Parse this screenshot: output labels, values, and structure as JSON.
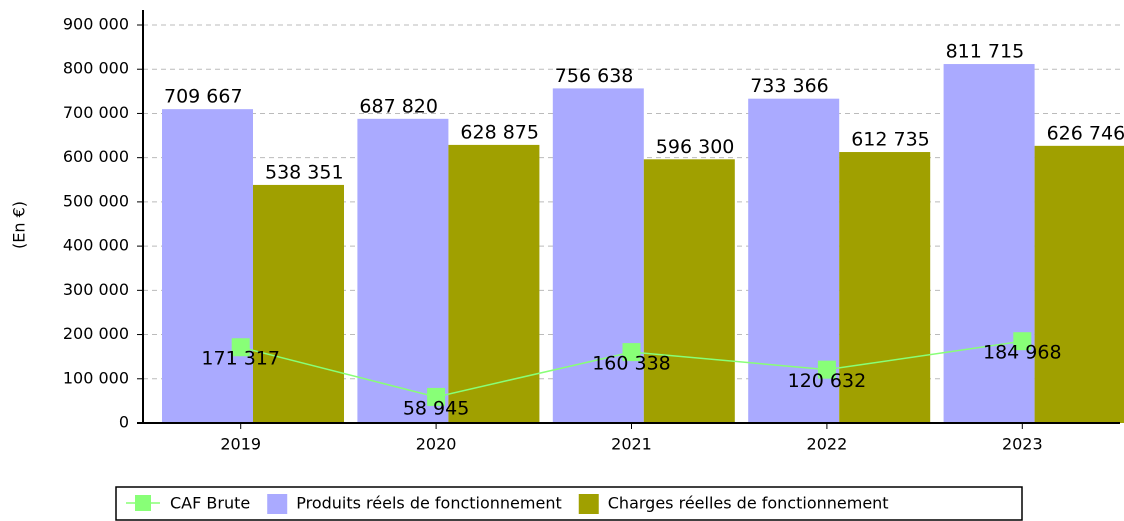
{
  "chart_data": {
    "type": "bar",
    "ylabel": "(En €)",
    "categories": [
      "2019",
      "2020",
      "2021",
      "2022",
      "2023"
    ],
    "series": [
      {
        "name": "CAF Brute",
        "type": "line",
        "color": "#88ff77",
        "values": [
          171317,
          58945,
          160338,
          120632,
          184968
        ],
        "value_labels": [
          "171 317",
          "58 945",
          "160 338",
          "120 632",
          "184 968"
        ]
      },
      {
        "name": "Produits réels de fonctionnement",
        "type": "bar",
        "color": "#aaaaff",
        "values": [
          709667,
          687820,
          756638,
          733366,
          811715
        ],
        "value_labels": [
          "709 667",
          "687 820",
          "756 638",
          "733 366",
          "811 715"
        ]
      },
      {
        "name": "Charges réelles de fonctionnement",
        "type": "bar",
        "color": "#a0a000",
        "values": [
          538351,
          628875,
          596300,
          612735,
          626746
        ],
        "value_labels": [
          "538 351",
          "628 875",
          "596 300",
          "612 735",
          "626 746"
        ]
      }
    ],
    "ylim": [
      0,
      900000
    ],
    "yticks": [
      0,
      {
        "value": 100000,
        "label": "100 000"
      },
      {
        "value": 200000,
        "label": "200 000"
      },
      {
        "value": 300000,
        "label": "300 000"
      },
      {
        "value": 400000,
        "label": "400 000"
      },
      {
        "value": 500000,
        "label": "500 000"
      },
      {
        "value": 600000,
        "label": "600 000"
      },
      {
        "value": 700000,
        "label": "700 000"
      },
      {
        "value": 800000,
        "label": "800 000"
      },
      {
        "value": 900000,
        "label": "900 000"
      }
    ],
    "grid": true,
    "legend": "bottom"
  }
}
